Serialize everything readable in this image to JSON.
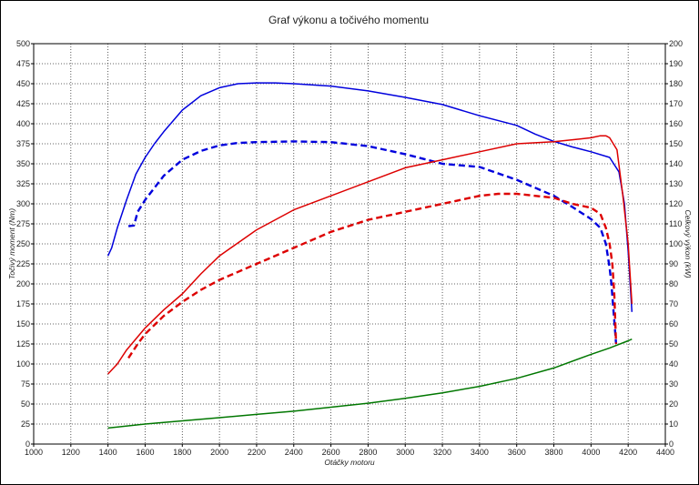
{
  "chart_data": {
    "type": "line",
    "title": "Graf výkonu a točivého momentu",
    "xlabel": "Otáčky motoru",
    "ylabel_left": "Točivý moment (Nm)",
    "ylabel_right": "Celkový výkon (kW)",
    "xlim": [
      1000,
      4400
    ],
    "ylim_left": [
      0,
      500
    ],
    "ylim_right": [
      0,
      200
    ],
    "x_ticks": [
      "1000",
      "1200",
      "1400",
      "1600",
      "1800",
      "2000",
      "2200",
      "2400",
      "2600",
      "2800",
      "3000",
      "3200",
      "3400",
      "3600",
      "3800",
      "4000",
      "4200",
      "4400"
    ],
    "y_left_ticks": [
      "0",
      "25",
      "50",
      "75",
      "100",
      "125",
      "150",
      "175",
      "200",
      "225",
      "250",
      "275",
      "300",
      "325",
      "350",
      "375",
      "400",
      "425",
      "450",
      "475",
      "500"
    ],
    "y_right_ticks": [
      "0",
      "10",
      "20",
      "30",
      "40",
      "50",
      "60",
      "70",
      "80",
      "90",
      "100",
      "110",
      "120",
      "130",
      "140",
      "150",
      "160",
      "170",
      "180",
      "190",
      "200"
    ],
    "grid": true,
    "series": [
      {
        "axis": "left",
        "color": "#0000dd",
        "style": "solid",
        "x": [
          1400,
          1420,
          1450,
          1500,
          1550,
          1600,
          1650,
          1700,
          1800,
          1900,
          2000,
          2100,
          2200,
          2300,
          2400,
          2600,
          2800,
          3000,
          3200,
          3400,
          3600,
          3700,
          3800,
          3900,
          4000,
          4100,
          4150,
          4180,
          4200,
          4220
        ],
        "y": [
          235,
          245,
          270,
          305,
          337,
          358,
          375,
          390,
          417,
          435,
          445,
          450,
          451,
          451,
          450,
          447,
          441,
          433,
          424,
          410,
          398,
          387,
          378,
          371,
          365,
          358,
          340,
          300,
          240,
          165
        ]
      },
      {
        "axis": "left",
        "color": "#0000dd",
        "style": "dashed",
        "x": [
          1510,
          1540,
          1560,
          1600,
          1650,
          1700,
          1800,
          1900,
          2000,
          2100,
          2200,
          2400,
          2600,
          2800,
          3000,
          3200,
          3400,
          3600,
          3800,
          3900,
          4000,
          4050,
          4080,
          4100,
          4110,
          4120,
          4130,
          4135
        ],
        "y": [
          272,
          273,
          290,
          305,
          320,
          335,
          355,
          366,
          373,
          376,
          377,
          378,
          377,
          372,
          362,
          350,
          346,
          330,
          310,
          296,
          281,
          270,
          250,
          220,
          200,
          170,
          140,
          125
        ]
      },
      {
        "axis": "right",
        "color": "#dd0000",
        "style": "solid",
        "x": [
          1400,
          1420,
          1450,
          1500,
          1600,
          1700,
          1800,
          1900,
          2000,
          2200,
          2400,
          2600,
          2800,
          3000,
          3200,
          3400,
          3600,
          3800,
          3900,
          4000,
          4050,
          4080,
          4100,
          4140,
          4170,
          4200,
          4220
        ],
        "y": [
          35,
          37,
          40,
          47,
          58,
          67,
          75,
          85,
          94,
          107,
          117,
          124,
          131,
          138,
          142,
          146,
          150,
          151,
          152,
          153,
          154,
          154,
          153,
          147,
          125,
          100,
          70
        ]
      },
      {
        "axis": "right",
        "color": "#dd0000",
        "style": "dashed",
        "x": [
          1510,
          1560,
          1600,
          1700,
          1800,
          1900,
          2000,
          2100,
          2200,
          2400,
          2600,
          2800,
          3000,
          3200,
          3400,
          3500,
          3600,
          3800,
          3900,
          4000,
          4050,
          4080,
          4100,
          4115,
          4125,
          4135
        ],
        "y": [
          43,
          50,
          55,
          64,
          71,
          77,
          82,
          86,
          90,
          98,
          106,
          112,
          116,
          120,
          124,
          125,
          125,
          123,
          120,
          118,
          115,
          108,
          100,
          90,
          75,
          50
        ]
      },
      {
        "axis": "left",
        "color": "#007700",
        "style": "solid",
        "x": [
          1400,
          1600,
          1800,
          2000,
          2200,
          2400,
          2600,
          2800,
          3000,
          3200,
          3400,
          3600,
          3800,
          4000,
          4100,
          4200,
          4220
        ],
        "y": [
          20,
          25,
          29,
          33,
          37,
          41,
          46,
          51,
          57,
          64,
          72,
          82,
          95,
          112,
          120,
          129,
          131
        ]
      }
    ]
  }
}
